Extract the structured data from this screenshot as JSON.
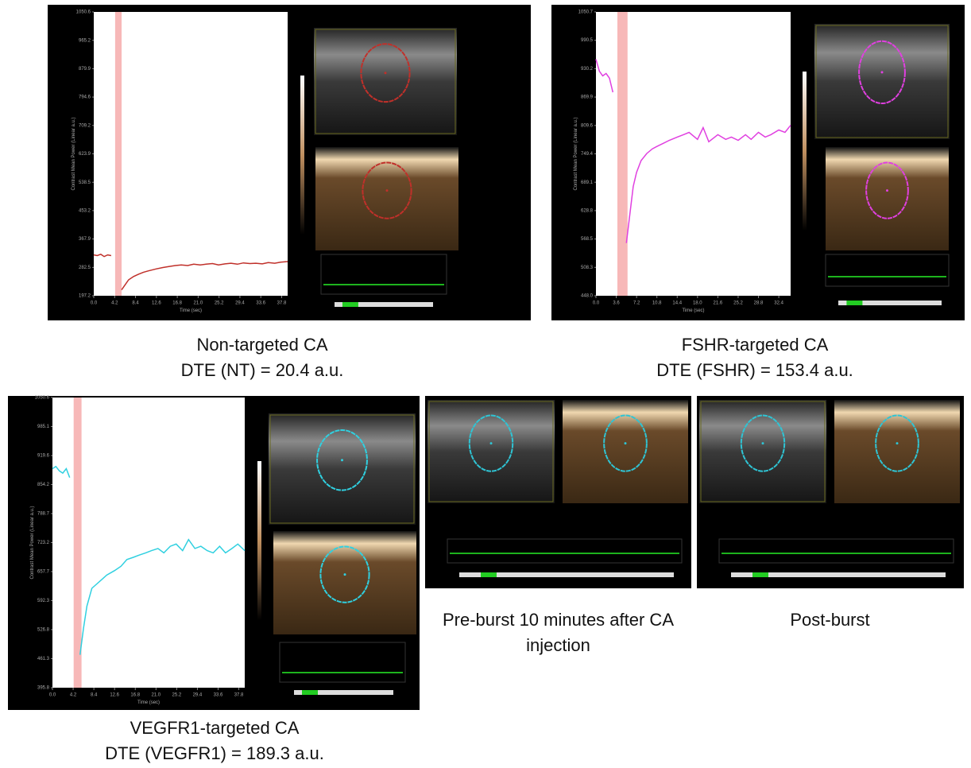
{
  "chart_data": [
    {
      "type": "line",
      "caption": "Non-targeted CA",
      "subcaption": "DTE (NT) = 20.4 a.u.",
      "xlabel": "Time (sec)",
      "ylabel": "Contrast Mean Power (Linear a.u.)",
      "xlim": [
        0,
        39
      ],
      "ylim": [
        197.2,
        1050.6
      ],
      "xticks": [
        {
          "value": 0,
          "label": "0.0"
        },
        4.2,
        8.4,
        12.6,
        16.8,
        {
          "value": 21,
          "label": "21.0"
        },
        25.2,
        29.4,
        33.6,
        37.8
      ],
      "yticks": [
        1050.6,
        965.2,
        879.9,
        794.6,
        709.2,
        623.9,
        538.5,
        453.2,
        367.9,
        282.5,
        197.2
      ],
      "burst_band": [
        4.3,
        5.6
      ],
      "x": [
        0,
        0.7,
        1.4,
        2.1,
        2.8,
        3.5,
        4.8,
        5.6,
        6.3,
        7,
        8,
        9,
        10,
        11,
        12.6,
        13.9,
        15.1,
        16.4,
        17.6,
        18.9,
        20.1,
        21.4,
        22.6,
        23.9,
        25.1,
        26.4,
        27.6,
        28.9,
        30.1,
        31.4,
        32.6,
        33.9,
        35.1,
        36.4,
        37.6,
        39
      ],
      "series": [
        {
          "color": "#c0302a",
          "values": [
            320,
            318,
            322,
            315,
            320,
            318,
            null,
            215,
            230,
            245,
            255,
            262,
            268,
            272,
            278,
            282,
            285,
            288,
            290,
            288,
            292,
            290,
            292,
            294,
            290,
            293,
            295,
            292,
            296,
            294,
            295,
            293,
            297,
            295,
            298,
            300
          ]
        }
      ]
    },
    {
      "type": "line",
      "caption": "FSHR-targeted CA",
      "subcaption": "DTE (FSHR) = 153.4 a.u.",
      "xlabel": "Time (sec)",
      "ylabel": "Contrast Mean Power (Linear a.u.)",
      "xlim": [
        0,
        34.5
      ],
      "ylim": [
        448,
        1050.7
      ],
      "xticks": [
        {
          "value": 0,
          "label": "0.0"
        },
        3.6,
        7.2,
        10.8,
        14.4,
        {
          "value": 18,
          "label": "18.0"
        },
        21.6,
        25.2,
        28.8,
        32.4
      ],
      "yticks": [
        1050.7,
        990.5,
        930.2,
        869.9,
        809.6,
        749.4,
        689.1,
        628.8,
        568.5,
        508.3,
        {
          "value": 448,
          "label": "448.0"
        }
      ],
      "burst_band": [
        3.8,
        5.6
      ],
      "x": [
        0,
        0.6,
        1.2,
        1.8,
        2.4,
        3.0,
        4.4,
        5.4,
        6,
        6.6,
        7.2,
        8,
        9,
        10,
        10.8,
        12,
        13,
        14.4,
        15.5,
        16.5,
        18,
        19,
        20,
        21.6,
        23,
        24,
        25.2,
        26.5,
        27.5,
        28.8,
        30,
        31,
        32.4,
        33.5,
        34.5
      ],
      "series": [
        {
          "color": "#e040e0",
          "values": [
            950,
            925,
            915,
            920,
            910,
            880,
            null,
            560,
            620,
            680,
            710,
            735,
            750,
            760,
            765,
            772,
            778,
            785,
            790,
            795,
            780,
            805,
            775,
            790,
            780,
            785,
            778,
            790,
            780,
            795,
            785,
            790,
            800,
            795,
            810
          ]
        }
      ]
    },
    {
      "type": "line",
      "caption": "VEGFR1-targeted CA",
      "subcaption": "DTE (VEGFR1) = 189.3 a.u.",
      "xlabel": "Time (sec)",
      "ylabel": "Contrast Mean Power (Linear a.u.)",
      "xlim": [
        0,
        39
      ],
      "ylim": [
        395.8,
        1050.6
      ],
      "xticks": [
        {
          "value": 0,
          "label": "0.0"
        },
        4.2,
        8.4,
        12.6,
        16.8,
        {
          "value": 21,
          "label": "21.0"
        },
        25.2,
        29.4,
        33.6,
        37.8
      ],
      "yticks": [
        1050.6,
        985.1,
        919.6,
        854.2,
        788.7,
        723.2,
        657.7,
        592.3,
        526.8,
        461.3,
        395.8
      ],
      "burst_band": [
        4.3,
        5.9
      ],
      "x": [
        0,
        0.7,
        1.4,
        2.1,
        2.8,
        3.5,
        4.8,
        5.6,
        6.3,
        7,
        8,
        9,
        10,
        11,
        12.6,
        13.9,
        15.1,
        16.4,
        17.6,
        18.9,
        20.1,
        21.4,
        22.6,
        23.9,
        25.1,
        26.4,
        27.6,
        28.9,
        30.1,
        31.4,
        32.6,
        33.9,
        35.1,
        36.4,
        37.6,
        39
      ],
      "series": [
        {
          "color": "#30d0e0",
          "values": [
            890,
            895,
            885,
            880,
            890,
            870,
            null,
            470,
            530,
            580,
            620,
            630,
            640,
            650,
            660,
            670,
            685,
            690,
            695,
            700,
            705,
            710,
            700,
            715,
            720,
            705,
            730,
            710,
            715,
            705,
            700,
            715,
            700,
            710,
            720,
            705
          ]
        }
      ]
    }
  ],
  "panels": [
    {
      "caption": "Pre-burst 10 minutes after CA injection"
    },
    {
      "caption": "Post-burst"
    }
  ]
}
